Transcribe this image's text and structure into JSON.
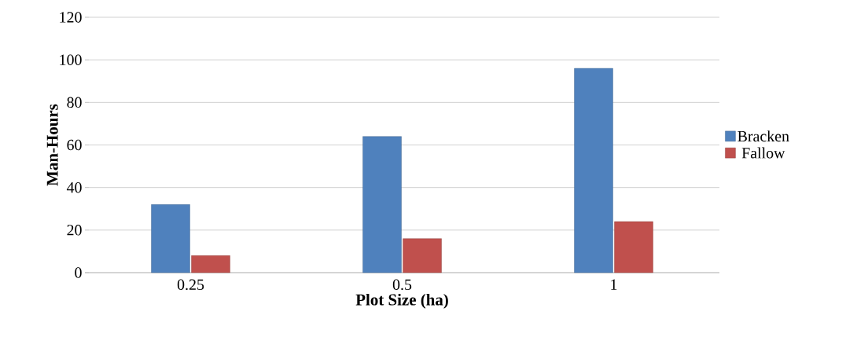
{
  "chart_data": {
    "type": "bar",
    "xlabel": "Plot Size (ha)",
    "ylabel": "Man-Hours",
    "categories": [
      "0.25",
      "0.5",
      "1"
    ],
    "series": [
      {
        "name": "Bracken",
        "color": "#4f81bd",
        "values": [
          32,
          64,
          96
        ]
      },
      {
        "name": "Fallow",
        "color": "#c0504d",
        "values": [
          8,
          16,
          24
        ]
      }
    ],
    "ylim": [
      0,
      120
    ],
    "yticks": [
      0,
      20,
      40,
      60,
      80,
      100,
      120
    ],
    "grid": "y",
    "legend": "right"
  }
}
